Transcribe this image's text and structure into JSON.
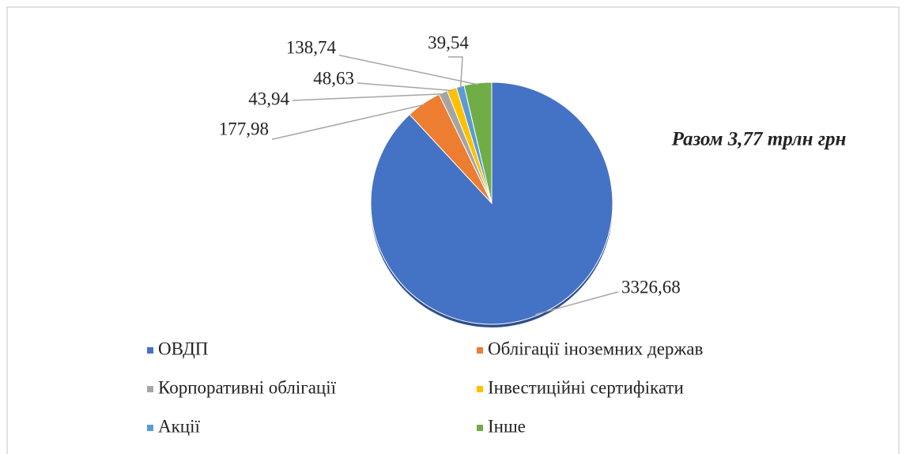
{
  "chart_data": {
    "type": "pie",
    "annotation": "Разом 3,77 трлн грн",
    "categories": [
      "ОВДП",
      "Облігації іноземних держав",
      "Корпоративні облігації",
      "Інвестиційні сертифікати",
      "Акції",
      "Інше"
    ],
    "values": [
      3326.68,
      177.98,
      43.94,
      48.63,
      39.54,
      138.74
    ],
    "value_labels": [
      "3326,68",
      "177,98",
      "43,94",
      "48,63",
      "39,54",
      "138,74"
    ],
    "colors": [
      "#4472c4",
      "#ed7d31",
      "#a5a5a5",
      "#ffc000",
      "#5b9bd5",
      "#70ad47"
    ],
    "legend": "bottom"
  }
}
